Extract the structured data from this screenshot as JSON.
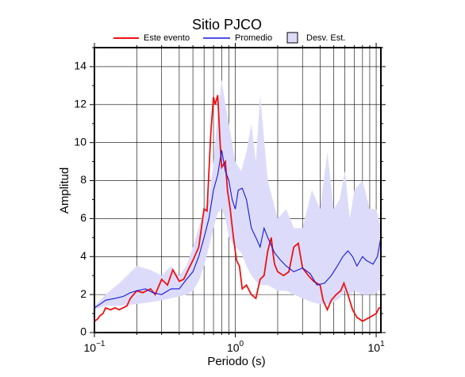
{
  "chart_data": {
    "type": "line",
    "title": "Sitio PJCO",
    "xlabel": "Periodo (s)",
    "ylabel": "Amplitud",
    "xscale": "log",
    "grid": true,
    "xlim": [
      0.1,
      10.8
    ],
    "ylim": [
      0,
      15
    ],
    "xticks": [
      {
        "value": 0.1,
        "label": "10",
        "exponent": "−1"
      },
      {
        "value": 1,
        "label": "10",
        "exponent": "0"
      },
      {
        "value": 10,
        "label": "10",
        "exponent": "1"
      }
    ],
    "xminorticks": [
      0.2,
      0.3,
      0.4,
      0.5,
      0.6,
      0.7,
      0.8,
      0.9,
      2,
      3,
      4,
      5,
      6,
      7,
      8,
      9
    ],
    "yticks": [
      0,
      2,
      4,
      6,
      8,
      10,
      12,
      14
    ],
    "yminorticks": [
      1,
      3,
      5,
      7,
      9,
      11,
      13,
      15
    ],
    "band": {
      "name": "Desv. Est.",
      "color": "#dcdcfa",
      "x": [
        0.1,
        0.12,
        0.15,
        0.2,
        0.25,
        0.3,
        0.35,
        0.4,
        0.45,
        0.5,
        0.55,
        0.6,
        0.65,
        0.7,
        0.75,
        0.8,
        0.85,
        0.9,
        1.0,
        1.1,
        1.2,
        1.3,
        1.4,
        1.5,
        1.7,
        2.0,
        2.3,
        2.6,
        3.0,
        3.5,
        4.0,
        4.5,
        5.0,
        5.5,
        6.0,
        6.5,
        7.0,
        8.0,
        9.0,
        10.0,
        10.8
      ],
      "upper": [
        1.4,
        2.0,
        2.6,
        3.5,
        3.3,
        3.0,
        3.5,
        3.0,
        3.5,
        4.5,
        5.5,
        6.5,
        7.0,
        9.0,
        11.5,
        13.3,
        12.0,
        11.0,
        9.0,
        8.5,
        9.5,
        11.0,
        9.0,
        12.5,
        8.0,
        6.0,
        6.5,
        5.5,
        5.5,
        7.5,
        6.5,
        9.5,
        6.5,
        7.0,
        8.5,
        6.0,
        7.5,
        8.0,
        6.5,
        6.5,
        5.5
      ],
      "lower": [
        1.2,
        1.4,
        1.4,
        1.5,
        1.6,
        1.7,
        1.8,
        1.9,
        2.0,
        2.2,
        2.7,
        3.5,
        4.5,
        5.5,
        6.3,
        6.5,
        6.0,
        5.0,
        4.5,
        4.2,
        3.5,
        3.0,
        2.7,
        2.5,
        2.5,
        2.2,
        2.2,
        2.0,
        1.8,
        1.6,
        1.5,
        1.5,
        1.6,
        1.8,
        2.2,
        2.0,
        2.2,
        2.0,
        2.0,
        2.1,
        2.3
      ]
    },
    "series": [
      {
        "name": "Este evento",
        "color": "#ee1111",
        "x": [
          0.1,
          0.105,
          0.11,
          0.115,
          0.12,
          0.13,
          0.14,
          0.15,
          0.17,
          0.18,
          0.2,
          0.22,
          0.25,
          0.27,
          0.3,
          0.33,
          0.36,
          0.4,
          0.43,
          0.47,
          0.5,
          0.55,
          0.6,
          0.63,
          0.67,
          0.7,
          0.72,
          0.75,
          0.78,
          0.8,
          0.85,
          0.88,
          0.92,
          0.97,
          1.02,
          1.07,
          1.12,
          1.2,
          1.3,
          1.4,
          1.5,
          1.6,
          1.7,
          1.8,
          1.85,
          1.9,
          2.0,
          2.2,
          2.4,
          2.6,
          2.8,
          3.0,
          3.3,
          3.6,
          4.0,
          4.2,
          4.5,
          4.8,
          5.2,
          5.6,
          5.9,
          6.3,
          6.8,
          7.3,
          8.0,
          9.0,
          10.0,
          10.5,
          10.8
        ],
        "values": [
          0.6,
          0.7,
          0.9,
          1.0,
          1.3,
          1.2,
          1.3,
          1.2,
          1.4,
          1.8,
          2.2,
          2.1,
          2.3,
          2.0,
          2.8,
          2.5,
          3.3,
          2.7,
          2.8,
          3.4,
          3.8,
          4.5,
          6.5,
          6.4,
          10.5,
          12.4,
          12.0,
          12.5,
          10.0,
          8.7,
          9.0,
          7.5,
          6.5,
          5.0,
          3.8,
          3.5,
          2.3,
          2.5,
          2.0,
          1.8,
          2.8,
          3.0,
          4.3,
          5.0,
          4.2,
          3.6,
          3.2,
          3.0,
          3.2,
          4.5,
          4.7,
          3.4,
          3.0,
          2.7,
          2.5,
          1.7,
          1.2,
          1.7,
          2.0,
          2.2,
          2.6,
          2.0,
          1.2,
          0.8,
          0.6,
          0.8,
          1.0,
          1.3,
          1.3
        ]
      },
      {
        "name": "Promedio",
        "color": "#1515dd",
        "x": [
          0.1,
          0.11,
          0.12,
          0.14,
          0.16,
          0.18,
          0.2,
          0.23,
          0.26,
          0.3,
          0.35,
          0.4,
          0.45,
          0.5,
          0.55,
          0.6,
          0.65,
          0.7,
          0.75,
          0.8,
          0.85,
          0.9,
          0.95,
          1.0,
          1.05,
          1.12,
          1.2,
          1.3,
          1.4,
          1.5,
          1.6,
          1.7,
          1.9,
          2.1,
          2.3,
          2.6,
          3.0,
          3.4,
          3.8,
          4.3,
          4.8,
          5.3,
          5.8,
          6.3,
          6.8,
          7.3,
          8.0,
          8.5,
          9.5,
          10.2,
          10.8
        ],
        "values": [
          1.3,
          1.5,
          1.7,
          1.8,
          1.9,
          2.1,
          2.2,
          2.3,
          2.1,
          2.0,
          2.3,
          2.3,
          2.8,
          3.2,
          4.0,
          5.0,
          6.0,
          7.5,
          8.3,
          9.6,
          8.5,
          8.0,
          7.0,
          6.5,
          7.5,
          7.6,
          7.0,
          5.5,
          5.0,
          4.5,
          5.5,
          5.0,
          4.2,
          3.8,
          3.5,
          3.2,
          3.4,
          3.1,
          2.5,
          2.6,
          3.0,
          3.5,
          4.0,
          4.3,
          4.0,
          3.5,
          4.0,
          3.8,
          3.6,
          4.0,
          5.0
        ]
      }
    ]
  }
}
